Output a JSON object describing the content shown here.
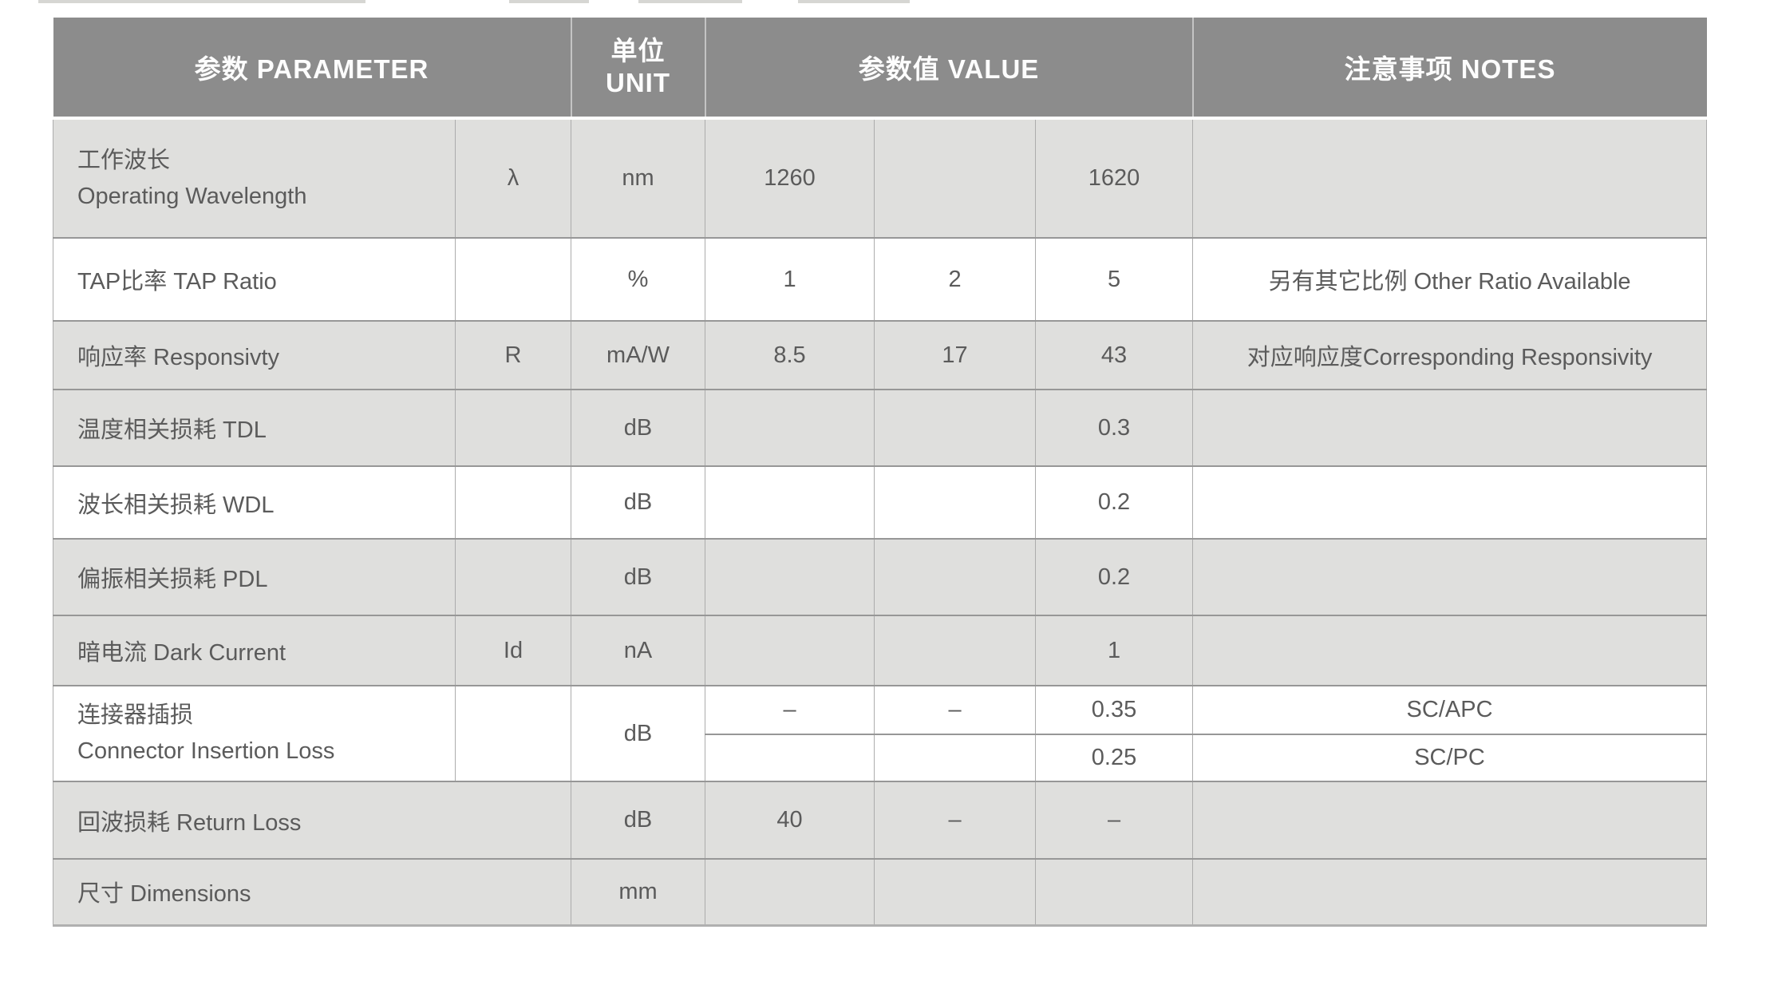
{
  "colors": {
    "header_bg": "#8c8c8c",
    "header_text": "#fdfdfd",
    "row_gray": "#dfdfdd",
    "row_white": "#ffffff",
    "body_text": "#5b5b5b",
    "grid_line": "#979797"
  },
  "table": {
    "header": {
      "parameter": "参数  PARAMETER",
      "unit_zh": "单位",
      "unit_en": "UNIT",
      "value": "参数值 VALUE",
      "notes": "注意事项 NOTES"
    },
    "rows": [
      {
        "label_zh": "工作波长",
        "label_en": "Operating Wavelength",
        "symbol": "λ",
        "unit": "nm",
        "v1": "1260",
        "v2": "",
        "v3": "1620",
        "note": ""
      },
      {
        "label": "TAP比率 TAP Ratio",
        "symbol": "",
        "unit": "%",
        "v1": "1",
        "v2": "2",
        "v3": "5",
        "note": "另有其它比例 Other Ratio Available"
      },
      {
        "label": "响应率 Responsivty",
        "symbol": "R",
        "unit": "mA/W",
        "v1": "8.5",
        "v2": "17",
        "v3": "43",
        "note": "对应响应度Corresponding Responsivity"
      },
      {
        "label": "温度相关损耗 TDL",
        "symbol": "",
        "unit": "dB",
        "v1": "",
        "v2": "",
        "v3": "0.3",
        "note": ""
      },
      {
        "label": "波长相关损耗 WDL",
        "symbol": "",
        "unit": "dB",
        "v1": "",
        "v2": "",
        "v3": "0.2",
        "note": ""
      },
      {
        "label": "偏振相关损耗 PDL",
        "symbol": "",
        "unit": "dB",
        "v1": "",
        "v2": "",
        "v3": "0.2",
        "note": ""
      },
      {
        "label": "暗电流 Dark Current",
        "symbol": "Id",
        "unit": "nA",
        "v1": "",
        "v2": "",
        "v3": "1",
        "note": ""
      },
      {
        "label_zh": "连接器插损",
        "label_en": "Connector Insertion Loss",
        "symbol": "",
        "unit": "dB",
        "sub_rows": [
          {
            "v1": "–",
            "v2": "–",
            "v3": "0.35",
            "note": "SC/APC"
          },
          {
            "v1": "",
            "v2": "",
            "v3": "0.25",
            "note": "SC/PC"
          }
        ]
      },
      {
        "label": "回波损耗 Return Loss",
        "symbol": "",
        "unit": "dB",
        "v1": "40",
        "v2": "–",
        "v3": "–",
        "note": ""
      },
      {
        "label": "尺寸 Dimensions",
        "symbol": "",
        "unit": "mm",
        "v1": "",
        "v2": "",
        "v3": "",
        "note": ""
      }
    ]
  }
}
